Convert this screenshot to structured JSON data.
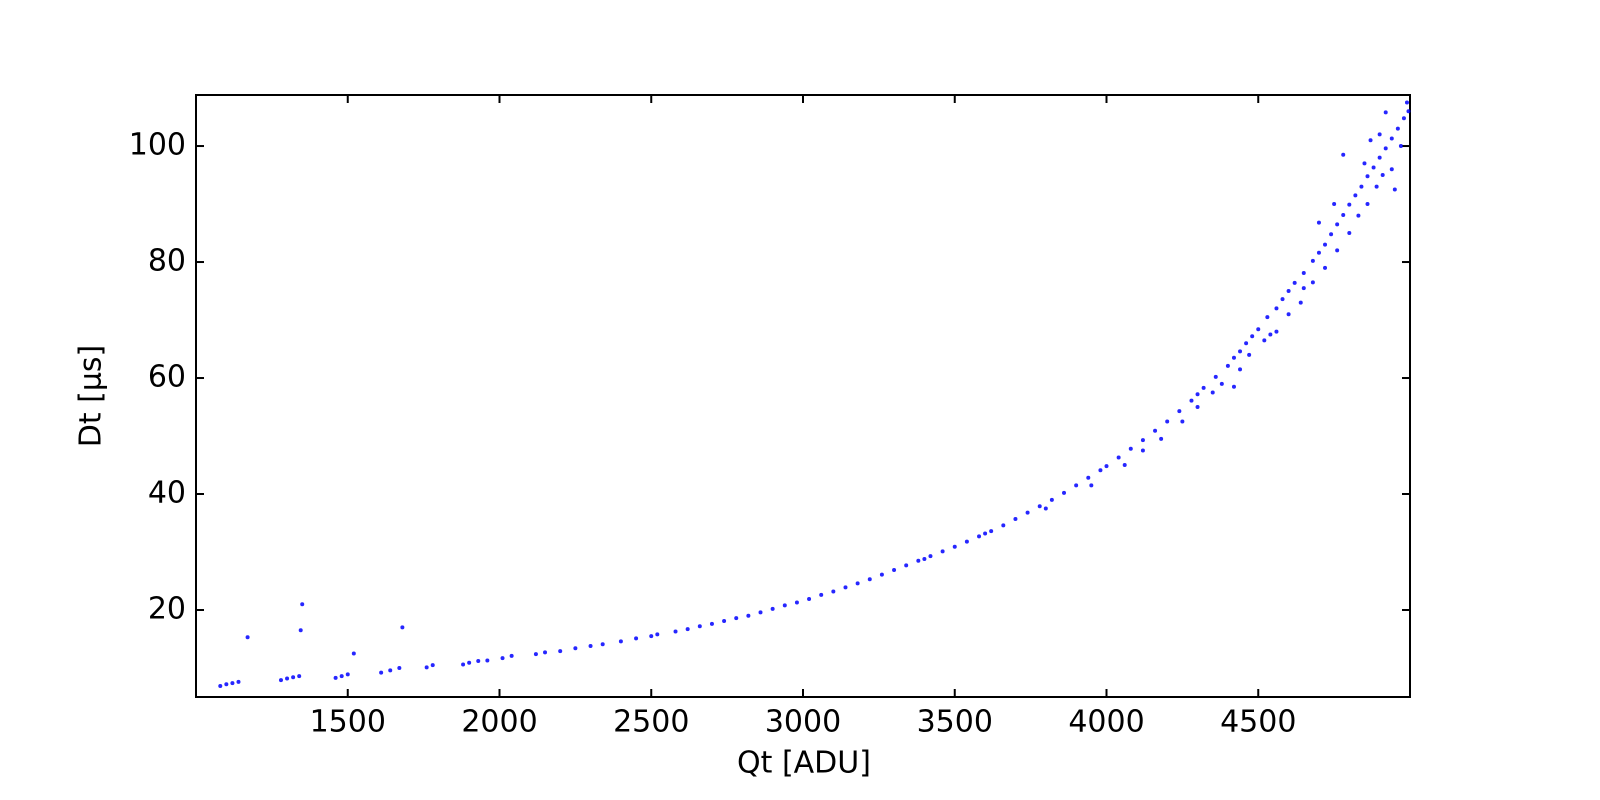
{
  "chart_data": {
    "type": "scatter",
    "xlabel": "Qt [ADU]",
    "ylabel": "Dt [μs]",
    "color": "#0000ff",
    "xlim": [
      1000,
      5000
    ],
    "ylim": [
      5,
      108.8
    ],
    "xticks": [
      1500,
      2000,
      2500,
      3000,
      3500,
      4000,
      4500
    ],
    "yticks": [
      20,
      40,
      60,
      80,
      100
    ],
    "x": [
      1080,
      1100,
      1120,
      1140,
      1280,
      1300,
      1320,
      1340,
      1170,
      1350,
      1345,
      1520,
      1680,
      1460,
      1480,
      1500,
      1610,
      1640,
      1670,
      1760,
      1780,
      1880,
      1900,
      1930,
      1960,
      2010,
      2040,
      2120,
      2150,
      2200,
      2250,
      2300,
      2340,
      2400,
      2450,
      2500,
      2520,
      2580,
      2620,
      2660,
      2700,
      2740,
      2780,
      2820,
      2860,
      2900,
      2940,
      2980,
      3020,
      3060,
      3100,
      3140,
      3180,
      3220,
      3260,
      3300,
      3340,
      3380,
      3420,
      3460,
      3500,
      3540,
      3580,
      3620,
      3660,
      3700,
      3740,
      3780,
      3820,
      3860,
      3900,
      3940,
      3980,
      4000,
      4040,
      4080,
      4120,
      4160,
      4200,
      4240,
      4280,
      4300,
      4320,
      4360,
      4400,
      4420,
      4440,
      4460,
      4480,
      4500,
      4530,
      4560,
      4580,
      4600,
      4620,
      4650,
      4680,
      4700,
      4720,
      4740,
      4760,
      4780,
      4800,
      4820,
      4840,
      4860,
      4880,
      4900,
      4920,
      4940,
      4960,
      4980,
      4995,
      4440,
      4470,
      4520,
      4560,
      4600,
      4640,
      4680,
      4700,
      4720,
      4760,
      4780,
      4800,
      4830,
      4860,
      4870,
      4890,
      4910,
      4920,
      4940,
      4950,
      4970,
      4990,
      4350,
      4380,
      4420,
      4250,
      4300,
      4180,
      4120,
      4060,
      3950,
      3800,
      3600,
      3400,
      4850,
      4900,
      4750,
      4650,
      4540
    ],
    "values": [
      6.9,
      7.2,
      7.4,
      7.6,
      7.9,
      8.2,
      8.4,
      8.6,
      15.3,
      21,
      16.5,
      12.5,
      17,
      8.3,
      8.6,
      8.9,
      9.2,
      9.6,
      10.0,
      10.1,
      10.5,
      10.6,
      10.9,
      11.2,
      11.3,
      11.7,
      12.1,
      12.4,
      12.7,
      12.9,
      13.4,
      13.8,
      14.1,
      14.6,
      15.1,
      15.5,
      15.8,
      16.3,
      16.7,
      17.2,
      17.6,
      18.1,
      18.6,
      19.0,
      19.6,
      20.2,
      20.8,
      21.3,
      21.9,
      22.6,
      23.2,
      23.9,
      24.6,
      25.3,
      26.1,
      26.9,
      27.7,
      28.5,
      29.3,
      30.1,
      30.9,
      31.8,
      32.7,
      33.6,
      34.6,
      35.7,
      36.8,
      37.9,
      39.0,
      40.2,
      41.5,
      42.8,
      44.1,
      44.8,
      46.3,
      47.8,
      49.3,
      50.9,
      52.5,
      54.3,
      56.1,
      57.2,
      58.3,
      60.2,
      62.1,
      63.5,
      64.6,
      66.0,
      67.2,
      68.4,
      70.5,
      72.0,
      73.6,
      75.0,
      76.4,
      78.1,
      80.2,
      81.6,
      83.0,
      84.8,
      86.5,
      88.1,
      89.9,
      91.5,
      93.0,
      94.8,
      96.3,
      98.0,
      99.6,
      101.3,
      103.0,
      104.8,
      106.0,
      61.5,
      64,
      66.5,
      68,
      71,
      73,
      76.5,
      86.8,
      79,
      82,
      98.5,
      85,
      88,
      90,
      101,
      93,
      95,
      105.8,
      96,
      92.5,
      100,
      107.5,
      57.5,
      59,
      58.5,
      52.5,
      55,
      49.5,
      47.5,
      45,
      41.5,
      37.5,
      33.2,
      28.8,
      97,
      102,
      90,
      75.5,
      67.5
    ]
  }
}
